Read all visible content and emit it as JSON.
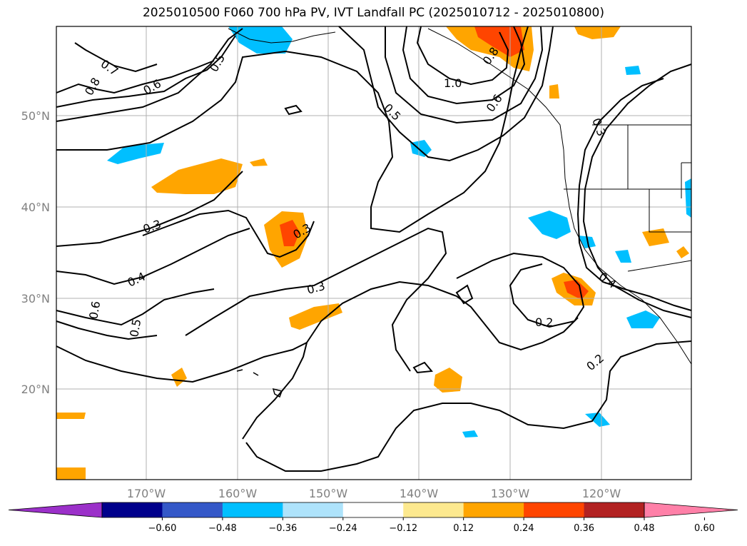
{
  "title": "2025010500 F060 700 hPa PV, IVT Landfall PC (2025010712 - 2025010800)",
  "lat_labels": [
    "50°N",
    "40°N",
    "30°N",
    "20°N"
  ],
  "lon_labels": [
    "170°W",
    "160°W",
    "150°W",
    "140°W",
    "130°W",
    "120°W"
  ],
  "colorbar": {
    "ticks": [
      "−0.60",
      "−0.48",
      "−0.36",
      "−0.24",
      "−0.12",
      "0.12",
      "0.24",
      "0.36",
      "0.48",
      "0.60"
    ],
    "colors": [
      "#9b30c9",
      "#00008b",
      "#3458c8",
      "#00bfff",
      "#aee3fb",
      "#ffffff",
      "#fde98f",
      "#ffa500",
      "#ff4500",
      "#b22222",
      "#ff80a8"
    ]
  },
  "contour_labels": [
    "0.7",
    "0.8",
    "0.6",
    "0.5",
    "1.0",
    "0.5",
    "0.6",
    "0.8",
    "0.3",
    "0.3",
    "0.3",
    "0.4",
    "0.3",
    "0.6",
    "0.5",
    "0.2",
    "0.4",
    "0.2"
  ]
}
